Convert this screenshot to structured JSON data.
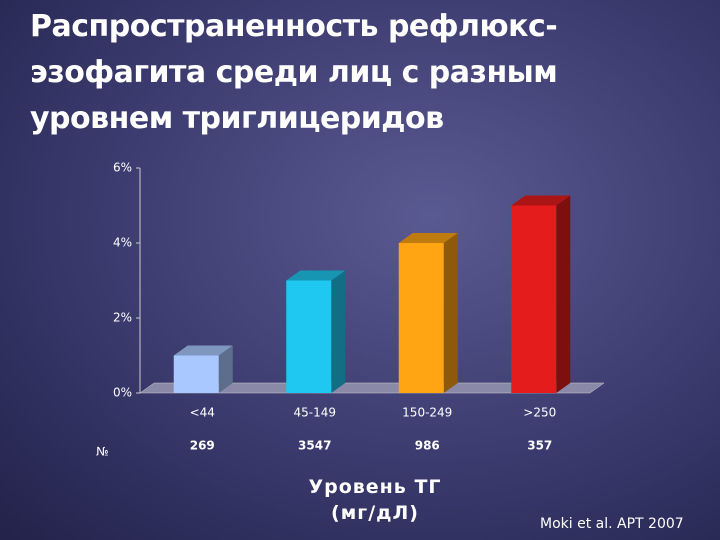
{
  "chart_data": {
    "type": "bar3d",
    "title": "Распространенность рефлюкс-эзофагита среди лиц с разным уровнем триглицеридов",
    "categories": [
      "<44",
      "45-149",
      "150-249",
      ">250"
    ],
    "values": [
      1,
      3,
      4,
      5
    ],
    "colors": [
      "#a9c8ff",
      "#1fc8f0",
      "#ffa412",
      "#e41c1c"
    ],
    "ylim": [
      0,
      6
    ],
    "yticks": [
      {
        "value": 0,
        "label": "0%"
      },
      {
        "value": 2,
        "label": "2%"
      },
      {
        "value": 4,
        "label": "4%"
      },
      {
        "value": 6,
        "label": "6%"
      }
    ],
    "counts_label": "№",
    "counts": [
      269,
      3547,
      986,
      357
    ],
    "xlabel": "Уровень ТГ (мг/дЛ)",
    "source": "Moki et al. APT 2007"
  }
}
